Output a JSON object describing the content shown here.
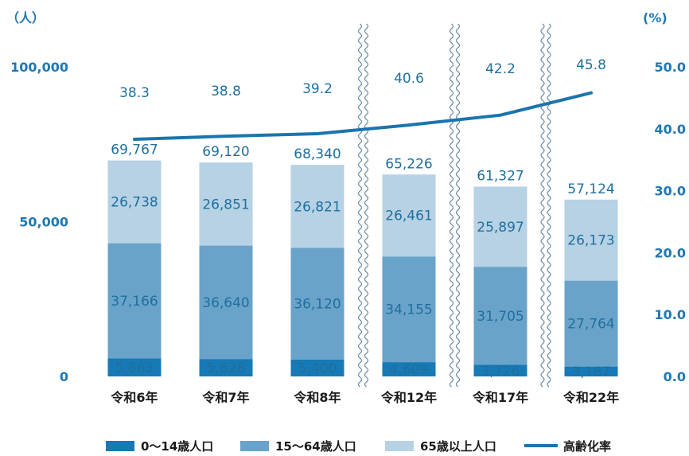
{
  "chart_data": {
    "type": "bar",
    "stacked": true,
    "y_unit_left": "（人）",
    "y_unit_right": "(%)",
    "categories": [
      "令和6年",
      "令和7年",
      "令和8年",
      "令和12年",
      "令和17年",
      "令和22年"
    ],
    "series": [
      {
        "name": "0～14歳人口",
        "values": [
          5863,
          5628,
          5400,
          4609,
          3726,
          3187
        ],
        "labels": [
          "5,863",
          "5,628",
          "5,400",
          "4,609",
          "3,726",
          "3,187"
        ],
        "color": "#1779b5"
      },
      {
        "name": "15～64歳人口",
        "values": [
          37166,
          36640,
          36120,
          34155,
          31705,
          27764
        ],
        "labels": [
          "37,166",
          "36,640",
          "36,120",
          "34,155",
          "31,705",
          "27,764"
        ],
        "color": "#6aa3c9"
      },
      {
        "name": "65歳以上人口",
        "values": [
          26738,
          26851,
          26821,
          26461,
          25897,
          26173
        ],
        "labels": [
          "26,738",
          "26,851",
          "26,821",
          "26,461",
          "25,897",
          "26,173"
        ],
        "color": "#b6d2e4"
      }
    ],
    "totals": [
      69767,
      69120,
      68340,
      65226,
      61327,
      57124
    ],
    "total_labels": [
      "69,767",
      "69,120",
      "68,340",
      "65,226",
      "61,327",
      "57,124"
    ],
    "line": {
      "name": "高齢化率",
      "values": [
        38.3,
        38.8,
        39.2,
        40.6,
        42.2,
        45.8
      ],
      "labels": [
        "38.3",
        "38.8",
        "39.2",
        "40.6",
        "42.2",
        "45.8"
      ],
      "color": "#1a75ad"
    },
    "y_left": {
      "min": 0,
      "max": 100000,
      "ticks": [
        0,
        50000,
        100000
      ],
      "tick_labels": [
        "0",
        "50,000",
        "100,000"
      ]
    },
    "y_right": {
      "min": 0,
      "max": 50,
      "ticks": [
        0,
        10,
        20,
        30,
        40,
        50
      ],
      "tick_labels": [
        "0.0",
        "10.0",
        "20.0",
        "30.0",
        "40.0",
        "50.0"
      ]
    },
    "axis_breaks_between": [
      [
        2,
        3
      ],
      [
        3,
        4
      ],
      [
        4,
        5
      ]
    ],
    "legend_position": "bottom",
    "grid": false
  }
}
